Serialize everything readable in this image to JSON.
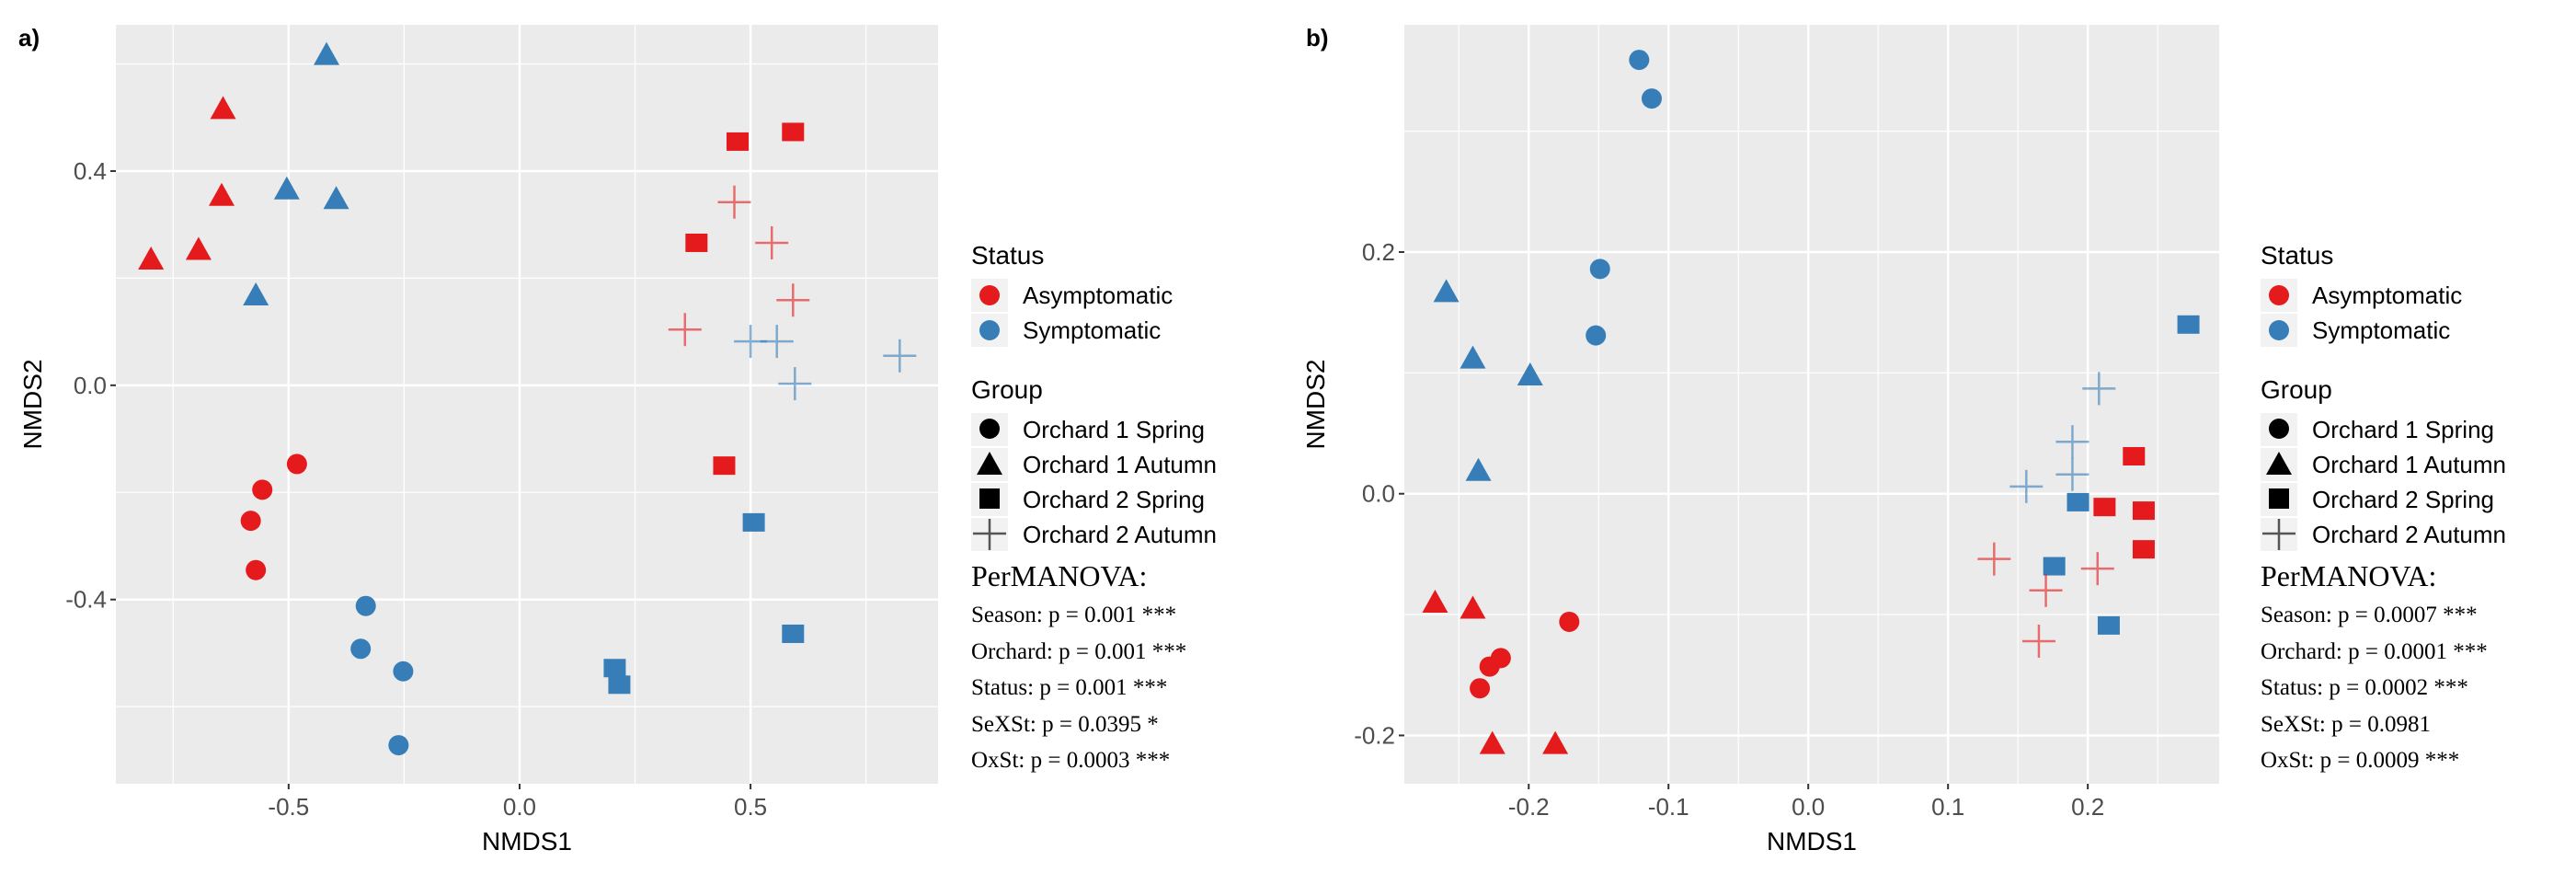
{
  "colors": {
    "Asymptomatic": "#E41A1C",
    "Symptomatic": "#377EB8",
    "panel_bg": "#EBEBEB"
  },
  "legend": {
    "status_title": "Status",
    "status": [
      "Asymptomatic",
      "Symptomatic"
    ],
    "group_title": "Group",
    "groups": [
      "Orchard 1 Spring",
      "Orchard 1 Autumn",
      "Orchard 2 Spring",
      "Orchard 2 Autumn"
    ],
    "shapes": [
      "circle",
      "triangle",
      "square",
      "cross"
    ]
  },
  "chart_data": [
    {
      "type": "scatter",
      "panel_label": "a)",
      "xlabel": "NMDS1",
      "ylabel": "NMDS2",
      "xlim": [
        -0.874,
        0.906
      ],
      "ylim": [
        -0.744,
        0.673
      ],
      "xticks": [
        -0.5,
        0.0,
        0.5
      ],
      "xtick_labels": [
        "-0.5",
        "0.0",
        "0.5"
      ],
      "yticks": [
        -0.4,
        0.0,
        0.4
      ],
      "ytick_labels": [
        "-0.4",
        "0.0",
        "0.4"
      ],
      "grid": true,
      "permanova": {
        "title": "PerMANOVA:",
        "lines": [
          "Season: p = 0.001 ***",
          "Orchard: p = 0.001 ***",
          "Status: p = 0.001 ***",
          "SeXSt: p = 0.0395 *",
          "OxSt: p = 0.0003 ***"
        ]
      },
      "series": [
        {
          "status": "Asymptomatic",
          "group": "Orchard 1 Spring",
          "points": [
            [
              -0.482,
              -0.147
            ],
            [
              -0.557,
              -0.195
            ],
            [
              -0.582,
              -0.253
            ],
            [
              -0.571,
              -0.345
            ]
          ]
        },
        {
          "status": "Symptomatic",
          "group": "Orchard 1 Spring",
          "points": [
            [
              -0.333,
              -0.412
            ],
            [
              -0.344,
              -0.492
            ],
            [
              -0.252,
              -0.534
            ],
            [
              -0.262,
              -0.672
            ]
          ]
        },
        {
          "status": "Asymptomatic",
          "group": "Orchard 1 Autumn",
          "points": [
            [
              -0.642,
              0.516
            ],
            [
              -0.645,
              0.354
            ],
            [
              -0.695,
              0.253
            ],
            [
              -0.798,
              0.235
            ]
          ]
        },
        {
          "status": "Symptomatic",
          "group": "Orchard 1 Autumn",
          "points": [
            [
              -0.418,
              0.617
            ],
            [
              -0.504,
              0.366
            ],
            [
              -0.397,
              0.348
            ],
            [
              -0.571,
              0.168
            ]
          ]
        },
        {
          "status": "Asymptomatic",
          "group": "Orchard 2 Spring",
          "points": [
            [
              0.472,
              0.455
            ],
            [
              0.592,
              0.473
            ],
            [
              0.383,
              0.266
            ],
            [
              0.443,
              -0.15
            ]
          ]
        },
        {
          "status": "Symptomatic",
          "group": "Orchard 2 Spring",
          "points": [
            [
              0.507,
              -0.256
            ],
            [
              0.592,
              -0.464
            ],
            [
              0.206,
              -0.528
            ],
            [
              0.216,
              -0.559
            ]
          ]
        },
        {
          "status": "Asymptomatic",
          "group": "Orchard 2 Autumn",
          "points": [
            [
              0.465,
              0.342
            ],
            [
              0.546,
              0.266
            ],
            [
              0.592,
              0.159
            ],
            [
              0.358,
              0.104
            ]
          ]
        },
        {
          "status": "Symptomatic",
          "group": "Orchard 2 Autumn",
          "points": [
            [
              0.5,
              0.082
            ],
            [
              0.557,
              0.082
            ],
            [
              0.596,
              0.003
            ],
            [
              0.823,
              0.055
            ]
          ]
        }
      ]
    },
    {
      "type": "scatter",
      "panel_label": "b)",
      "xlabel": "NMDS1",
      "ylabel": "NMDS2",
      "xlim": [
        -0.289,
        0.294
      ],
      "ylim": [
        -0.24,
        0.388
      ],
      "xticks": [
        -0.2,
        -0.1,
        0.0,
        0.1,
        0.2
      ],
      "xtick_labels": [
        "-0.2",
        "-0.1",
        "0.0",
        "0.1",
        "0.2"
      ],
      "yticks": [
        -0.2,
        0.0,
        0.2
      ],
      "ytick_labels": [
        "-0.2",
        "0.0",
        "0.2"
      ],
      "grid": true,
      "permanova": {
        "title": "PerMANOVA:",
        "lines": [
          "Season: p = 0.0007 ***",
          "Orchard: p = 0.0001 ***",
          "Status: p = 0.0002 ***",
          "SeXSt: p = 0.0981",
          "OxSt: p = 0.0009 ***"
        ]
      },
      "series": [
        {
          "status": "Asymptomatic",
          "group": "Orchard 1 Spring",
          "points": [
            [
              -0.171,
              -0.106
            ],
            [
              -0.228,
              -0.143
            ],
            [
              -0.22,
              -0.136
            ],
            [
              -0.235,
              -0.161
            ]
          ]
        },
        {
          "status": "Symptomatic",
          "group": "Orchard 1 Spring",
          "points": [
            [
              -0.121,
              0.359
            ],
            [
              -0.112,
              0.327
            ],
            [
              -0.149,
              0.186
            ],
            [
              -0.152,
              0.131
            ]
          ]
        },
        {
          "status": "Asymptomatic",
          "group": "Orchard 1 Autumn",
          "points": [
            [
              -0.267,
              -0.09
            ],
            [
              -0.24,
              -0.095
            ],
            [
              -0.226,
              -0.207
            ],
            [
              -0.181,
              -0.207
            ]
          ]
        },
        {
          "status": "Symptomatic",
          "group": "Orchard 1 Autumn",
          "points": [
            [
              -0.259,
              0.167
            ],
            [
              -0.24,
              0.112
            ],
            [
              -0.199,
              0.098
            ],
            [
              -0.236,
              0.019
            ]
          ]
        },
        {
          "status": "Asymptomatic",
          "group": "Orchard 2 Spring",
          "points": [
            [
              0.233,
              0.031
            ],
            [
              0.212,
              -0.011
            ],
            [
              0.24,
              -0.014
            ],
            [
              0.24,
              -0.046
            ]
          ]
        },
        {
          "status": "Symptomatic",
          "group": "Orchard 2 Spring",
          "points": [
            [
              0.272,
              0.14
            ],
            [
              0.193,
              -0.007
            ],
            [
              0.176,
              -0.06
            ],
            [
              0.215,
              -0.109
            ]
          ]
        },
        {
          "status": "Asymptomatic",
          "group": "Orchard 2 Autumn",
          "points": [
            [
              0.133,
              -0.054
            ],
            [
              0.17,
              -0.08
            ],
            [
              0.165,
              -0.122
            ],
            [
              0.207,
              -0.062
            ]
          ]
        },
        {
          "status": "Symptomatic",
          "group": "Orchard 2 Autumn",
          "points": [
            [
              0.208,
              0.087
            ],
            [
              0.189,
              0.043
            ],
            [
              0.189,
              0.016
            ],
            [
              0.156,
              0.006
            ]
          ]
        }
      ]
    }
  ]
}
